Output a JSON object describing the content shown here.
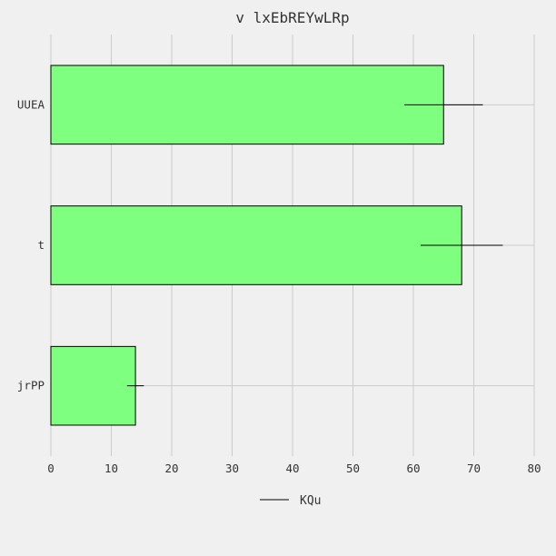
{
  "chart_data": {
    "type": "bar",
    "orientation": "horizontal",
    "title": "v lxEbREYwLRp",
    "xlabel": "",
    "ylabel": "",
    "categories": [
      "UUEA",
      "t",
      "jrPP"
    ],
    "series": [
      {
        "name": "KQu",
        "values": [
          65,
          68,
          14
        ],
        "errors": [
          6.5,
          6.8,
          1.4
        ],
        "color": "#7fff7f"
      }
    ],
    "xlim": [
      0,
      80
    ],
    "xticks": [
      "0",
      "10",
      "20",
      "30",
      "40",
      "50",
      "60",
      "70",
      "80"
    ],
    "grid": true,
    "legend_position": "bottom-center",
    "background": "#f0f0f0"
  }
}
